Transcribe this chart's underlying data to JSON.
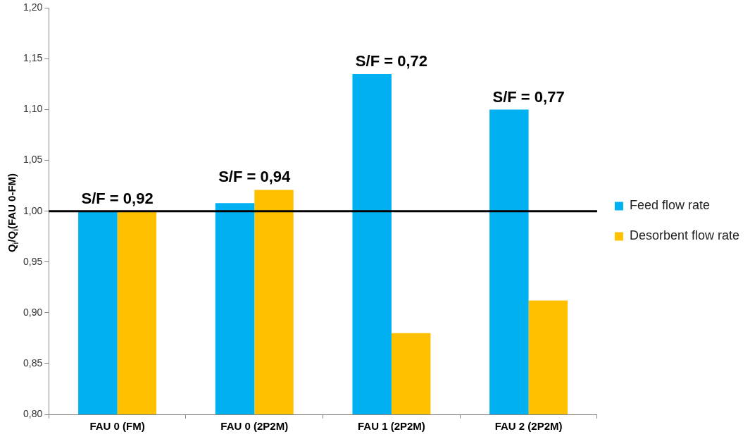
{
  "chart_data": {
    "type": "bar",
    "ylabel": "Q$_{i}$/Q$_{i}$(FAU 0-FM)",
    "categories": [
      "FAU 0 (FM)",
      "FAU 0 (2P2M)",
      "FAU 1 (2P2M)",
      "FAU 2 (2P2M)"
    ],
    "series": [
      {
        "name": "Feed flow rate",
        "color": "#00b0f0",
        "values": [
          1.0,
          1.008,
          1.135,
          1.1
        ]
      },
      {
        "name": "Desorbent flow rate",
        "color": "#ffc000",
        "values": [
          1.0,
          1.021,
          0.88,
          0.912
        ]
      }
    ],
    "ylim": [
      0.8,
      1.2
    ],
    "yticks": [
      {
        "value": 0.8,
        "label": "0,80"
      },
      {
        "value": 0.85,
        "label": "0,85"
      },
      {
        "value": 0.9,
        "label": "0,90"
      },
      {
        "value": 0.95,
        "label": "0,95"
      },
      {
        "value": 1.0,
        "label": "1,00"
      },
      {
        "value": 1.05,
        "label": "1,05"
      },
      {
        "value": 1.1,
        "label": "1,10"
      },
      {
        "value": 1.15,
        "label": "1,15"
      },
      {
        "value": 1.2,
        "label": "1,20"
      }
    ],
    "ref_lines": [
      {
        "axis": "y",
        "value": 1.0,
        "color": "#000000"
      }
    ],
    "annotations": [
      {
        "text": "S/F = 0,92",
        "x": "FAU 0 (FM)",
        "y": 1.0
      },
      {
        "text": "S/F = 0,94",
        "x": "FAU 0 (2P2M)",
        "y": 1.021
      },
      {
        "text": "S/F = 0,72",
        "x": "FAU 1 (2P2M)",
        "y": 1.135
      },
      {
        "text": "S/F = 0,77",
        "x": "FAU 2 (2P2M)",
        "y": 1.1
      }
    ],
    "grid": false,
    "legend": "right"
  }
}
